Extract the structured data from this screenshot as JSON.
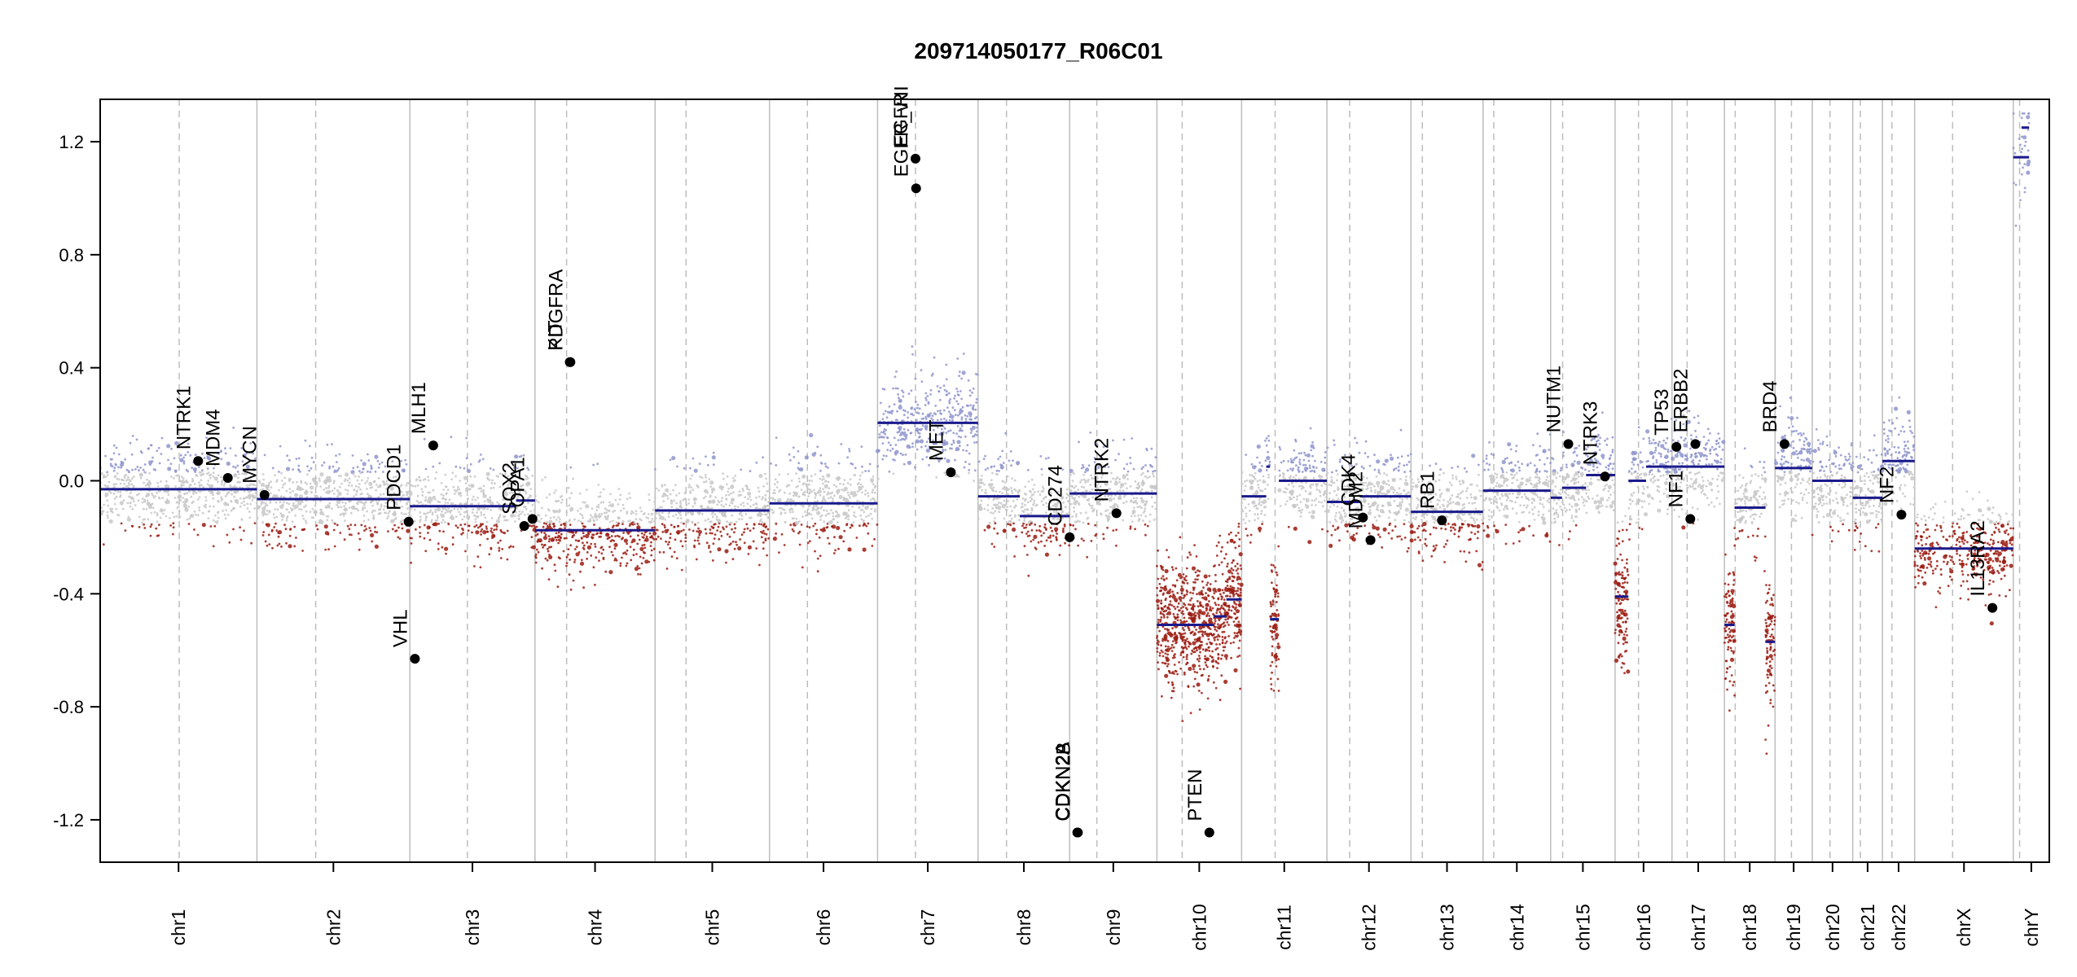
{
  "chart_data": {
    "type": "scatter",
    "title": "209714050177_R06C01",
    "xlabel": "",
    "ylabel": "",
    "ylim": [
      -1.35,
      1.35
    ],
    "yticks": [
      -1.2,
      -0.8,
      -0.4,
      0.0,
      0.4,
      0.8,
      1.2
    ],
    "ytick_labels": [
      "-1.2",
      "-0.8",
      "-0.4",
      "0.0",
      "0.4",
      "0.8",
      "1.2"
    ],
    "colors": {
      "gain": "#8f95cc",
      "neutral": "#c8c8c8",
      "loss": "#9b1c12",
      "segment": "#1a1a8c",
      "frame": "#000000",
      "boundary": "#bdbdbd"
    },
    "chromosomes": [
      {
        "name": "chr1",
        "start": 0,
        "end": 248,
        "centromere": 125
      },
      {
        "name": "chr2",
        "start": 248,
        "end": 490,
        "centromere": 341
      },
      {
        "name": "chr3",
        "start": 490,
        "end": 688,
        "centromere": 581
      },
      {
        "name": "chr4",
        "start": 688,
        "end": 878,
        "centromere": 738
      },
      {
        "name": "chr5",
        "start": 878,
        "end": 1059,
        "centromere": 927
      },
      {
        "name": "chr6",
        "start": 1059,
        "end": 1230,
        "centromere": 1119
      },
      {
        "name": "chr7",
        "start": 1230,
        "end": 1389,
        "centromere": 1290
      },
      {
        "name": "chr8",
        "start": 1389,
        "end": 1534,
        "centromere": 1434
      },
      {
        "name": "chr9",
        "start": 1534,
        "end": 1672,
        "centromere": 1577
      },
      {
        "name": "chr10",
        "start": 1672,
        "end": 1806,
        "centromere": 1712
      },
      {
        "name": "chr11",
        "start": 1806,
        "end": 1941,
        "centromere": 1859
      },
      {
        "name": "chr12",
        "start": 1941,
        "end": 2074,
        "centromere": 1977
      },
      {
        "name": "chr13",
        "start": 2074,
        "end": 2188,
        "centromere": 2092
      },
      {
        "name": "chr14",
        "start": 2188,
        "end": 2295,
        "centromere": 2205
      },
      {
        "name": "chr15",
        "start": 2295,
        "end": 2397,
        "centromere": 2314
      },
      {
        "name": "chr16",
        "start": 2397,
        "end": 2487,
        "centromere": 2434
      },
      {
        "name": "chr17",
        "start": 2487,
        "end": 2570,
        "centromere": 2511
      },
      {
        "name": "chr18",
        "start": 2570,
        "end": 2650,
        "centromere": 2587
      },
      {
        "name": "chr19",
        "start": 2650,
        "end": 2709,
        "centromere": 2676
      },
      {
        "name": "chr20",
        "start": 2709,
        "end": 2773,
        "centromere": 2737
      },
      {
        "name": "chr21",
        "start": 2773,
        "end": 2820,
        "centromere": 2785
      },
      {
        "name": "chr22",
        "start": 2820,
        "end": 2871,
        "centromere": 2835
      },
      {
        "name": "chrX",
        "start": 2871,
        "end": 3027,
        "centromere": 2931
      },
      {
        "name": "chrY",
        "start": 3027,
        "end": 3084,
        "centromere": 3037
      }
    ],
    "segments": [
      {
        "start": 0,
        "end": 248,
        "value": -0.03
      },
      {
        "start": 248,
        "end": 490,
        "value": -0.065
      },
      {
        "start": 490,
        "end": 658,
        "value": -0.09
      },
      {
        "start": 658,
        "end": 688,
        "value": -0.07
      },
      {
        "start": 688,
        "end": 878,
        "value": -0.175
      },
      {
        "start": 878,
        "end": 1059,
        "value": -0.105
      },
      {
        "start": 1059,
        "end": 1230,
        "value": -0.08
      },
      {
        "start": 1230,
        "end": 1389,
        "value": 0.205
      },
      {
        "start": 1389,
        "end": 1455,
        "value": -0.055
      },
      {
        "start": 1455,
        "end": 1534,
        "value": -0.125
      },
      {
        "start": 1534,
        "end": 1672,
        "value": -0.045
      },
      {
        "start": 1672,
        "end": 1762,
        "value": -0.51
      },
      {
        "start": 1762,
        "end": 1782,
        "value": -0.48
      },
      {
        "start": 1782,
        "end": 1806,
        "value": -0.42
      },
      {
        "start": 1806,
        "end": 1845,
        "value": -0.055
      },
      {
        "start": 1845,
        "end": 1851,
        "value": 0.05
      },
      {
        "start": 1851,
        "end": 1865,
        "value": -0.49
      },
      {
        "start": 1865,
        "end": 1941,
        "value": 0.0
      },
      {
        "start": 1941,
        "end": 1993,
        "value": -0.075
      },
      {
        "start": 1993,
        "end": 2074,
        "value": -0.055
      },
      {
        "start": 2074,
        "end": 2188,
        "value": -0.11
      },
      {
        "start": 2188,
        "end": 2295,
        "value": -0.035
      },
      {
        "start": 2295,
        "end": 2313,
        "value": -0.06
      },
      {
        "start": 2313,
        "end": 2351,
        "value": -0.025
      },
      {
        "start": 2351,
        "end": 2397,
        "value": 0.02
      },
      {
        "start": 2397,
        "end": 2418,
        "value": -0.41
      },
      {
        "start": 2418,
        "end": 2446,
        "value": 0.0
      },
      {
        "start": 2446,
        "end": 2487,
        "value": 0.05
      },
      {
        "start": 2487,
        "end": 2570,
        "value": 0.05
      },
      {
        "start": 2570,
        "end": 2586,
        "value": -0.51
      },
      {
        "start": 2586,
        "end": 2635,
        "value": -0.095
      },
      {
        "start": 2635,
        "end": 2650,
        "value": -0.57
      },
      {
        "start": 2650,
        "end": 2709,
        "value": 0.045
      },
      {
        "start": 2709,
        "end": 2773,
        "value": 0.0
      },
      {
        "start": 2773,
        "end": 2820,
        "value": -0.06
      },
      {
        "start": 2820,
        "end": 2871,
        "value": 0.07
      },
      {
        "start": 2871,
        "end": 3027,
        "value": -0.24
      },
      {
        "start": 3027,
        "end": 3052,
        "value": 1.145
      },
      {
        "start": 3040,
        "end": 3052,
        "value": 1.25
      }
    ],
    "genes": [
      {
        "name": "NTRK1",
        "pos": 155,
        "value": 0.07
      },
      {
        "name": "MDM4",
        "pos": 202,
        "value": 0.01
      },
      {
        "name": "MYCN",
        "pos": 260,
        "value": -0.05
      },
      {
        "name": "PDCD1",
        "pos": 488,
        "value": -0.145
      },
      {
        "name": "VHL",
        "pos": 498,
        "value": -0.63
      },
      {
        "name": "MLH1",
        "pos": 527,
        "value": 0.125
      },
      {
        "name": "SOX2",
        "pos": 671,
        "value": -0.16
      },
      {
        "name": "OPA1",
        "pos": 684,
        "value": -0.135
      },
      {
        "name": "KIT",
        "pos": 743,
        "value": 0.42
      },
      {
        "name": "PDGFRA",
        "pos": 744,
        "value": 0.42
      },
      {
        "name": "EGFR",
        "pos": 1290,
        "value": 1.14
      },
      {
        "name": "EGFR_vIII",
        "pos": 1291,
        "value": 1.035
      },
      {
        "name": "MET",
        "pos": 1346,
        "value": 0.03
      },
      {
        "name": "CD274",
        "pos": 1534,
        "value": -0.2
      },
      {
        "name": "CDKN2A",
        "pos": 1546,
        "value": -1.245
      },
      {
        "name": "CDKN2B",
        "pos": 1547,
        "value": -1.245
      },
      {
        "name": "NTRK2",
        "pos": 1608,
        "value": -0.115
      },
      {
        "name": "PTEN",
        "pos": 1755,
        "value": -1.245
      },
      {
        "name": "CDK4",
        "pos": 1998,
        "value": -0.13
      },
      {
        "name": "MDM2",
        "pos": 2010,
        "value": -0.21
      },
      {
        "name": "RB1",
        "pos": 2123,
        "value": -0.14
      },
      {
        "name": "NUTM1",
        "pos": 2323,
        "value": 0.13
      },
      {
        "name": "NTRK3",
        "pos": 2381,
        "value": 0.015
      },
      {
        "name": "TP53",
        "pos": 2494,
        "value": 0.12
      },
      {
        "name": "NF1",
        "pos": 2516,
        "value": -0.135
      },
      {
        "name": "ERBB2",
        "pos": 2524,
        "value": 0.13
      },
      {
        "name": "BRD4",
        "pos": 2665,
        "value": 0.13
      },
      {
        "name": "NF2",
        "pos": 2850,
        "value": -0.12
      },
      {
        "name": "IL13RA2",
        "pos": 2994,
        "value": -0.45
      }
    ]
  }
}
